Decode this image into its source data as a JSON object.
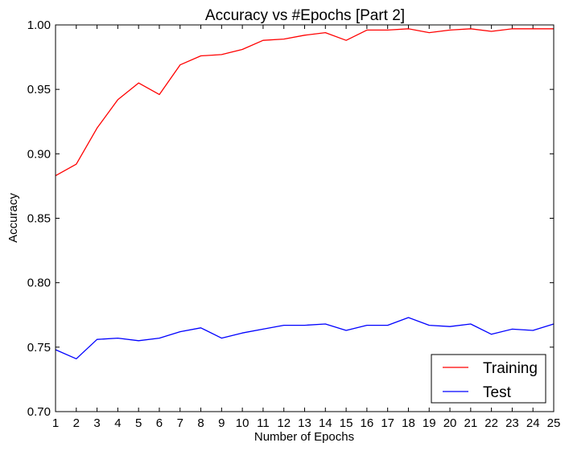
{
  "chart_data": {
    "type": "line",
    "title": "Accuracy vs #Epochs [Part 2]",
    "xlabel": "Number of Epochs",
    "ylabel": "Accuracy",
    "xlim": [
      1,
      25
    ],
    "ylim": [
      0.7,
      1.0
    ],
    "x": [
      1,
      2,
      3,
      4,
      5,
      6,
      7,
      8,
      9,
      10,
      11,
      12,
      13,
      14,
      15,
      16,
      17,
      18,
      19,
      20,
      21,
      22,
      23,
      24,
      25
    ],
    "xticks": [
      "1",
      "2",
      "3",
      "4",
      "5",
      "6",
      "7",
      "8",
      "9",
      "10",
      "11",
      "12",
      "13",
      "14",
      "15",
      "16",
      "17",
      "18",
      "19",
      "20",
      "21",
      "22",
      "23",
      "24",
      "25"
    ],
    "yticks": [
      "0.70",
      "0.75",
      "0.80",
      "0.85",
      "0.90",
      "0.95",
      "1.00"
    ],
    "ytick_values": [
      0.7,
      0.75,
      0.8,
      0.85,
      0.9,
      0.95,
      1.0
    ],
    "grid": false,
    "legend_position": "bottom-right",
    "series": [
      {
        "name": "Training",
        "color": "#ff0000",
        "values": [
          0.883,
          0.892,
          0.92,
          0.942,
          0.955,
          0.946,
          0.969,
          0.976,
          0.977,
          0.981,
          0.988,
          0.989,
          0.992,
          0.994,
          0.988,
          0.996,
          0.996,
          0.997,
          0.994,
          0.996,
          0.997,
          0.995,
          0.997,
          0.997,
          0.997
        ]
      },
      {
        "name": "Test",
        "color": "#0000ff",
        "values": [
          0.748,
          0.741,
          0.756,
          0.757,
          0.755,
          0.757,
          0.762,
          0.765,
          0.757,
          0.761,
          0.764,
          0.767,
          0.767,
          0.768,
          0.763,
          0.767,
          0.767,
          0.773,
          0.767,
          0.766,
          0.768,
          0.76,
          0.764,
          0.763,
          0.768
        ]
      }
    ]
  }
}
